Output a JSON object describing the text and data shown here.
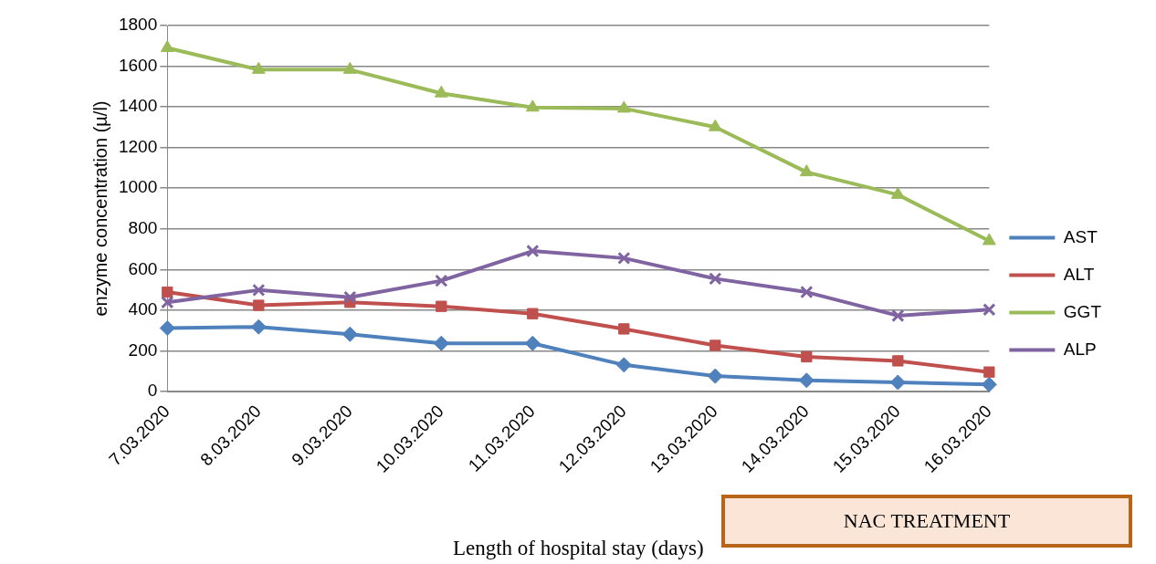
{
  "chart_data": {
    "type": "line",
    "xlabel": "Length of hospital stay (days)",
    "ylabel": "enzyme concentration (µ/l)",
    "categories": [
      "7.03.2020",
      "8.03.2020",
      "9.03.2020",
      "10.03.2020",
      "11.03.2020",
      "12.03.2020",
      "13.03.2020",
      "14.03.2020",
      "15.03.2020",
      "16.03.2020"
    ],
    "series": [
      {
        "name": "AST",
        "color": "#4f81bd",
        "marker": "diamond",
        "values": [
          312,
          318,
          282,
          237,
          237,
          131,
          76,
          55,
          45,
          35
        ]
      },
      {
        "name": "ALT",
        "color": "#c0504d",
        "marker": "square",
        "values": [
          489,
          424,
          439,
          419,
          383,
          308,
          227,
          171,
          151,
          96
        ]
      },
      {
        "name": "GGT",
        "color": "#9bbb59",
        "marker": "triangle",
        "values": [
          1690,
          1583,
          1583,
          1467,
          1397,
          1392,
          1301,
          1079,
          968,
          741
        ]
      },
      {
        "name": "ALP",
        "color": "#8064a2",
        "marker": "cross",
        "values": [
          439,
          499,
          464,
          545,
          691,
          656,
          555,
          489,
          373,
          403
        ]
      }
    ],
    "ylim": [
      0,
      1800
    ],
    "yticks": [
      0,
      200,
      400,
      600,
      800,
      1000,
      1200,
      1400,
      1600,
      1800
    ],
    "grid": "y",
    "legend": "right",
    "annotations": [
      "NAC TREATMENT"
    ]
  }
}
